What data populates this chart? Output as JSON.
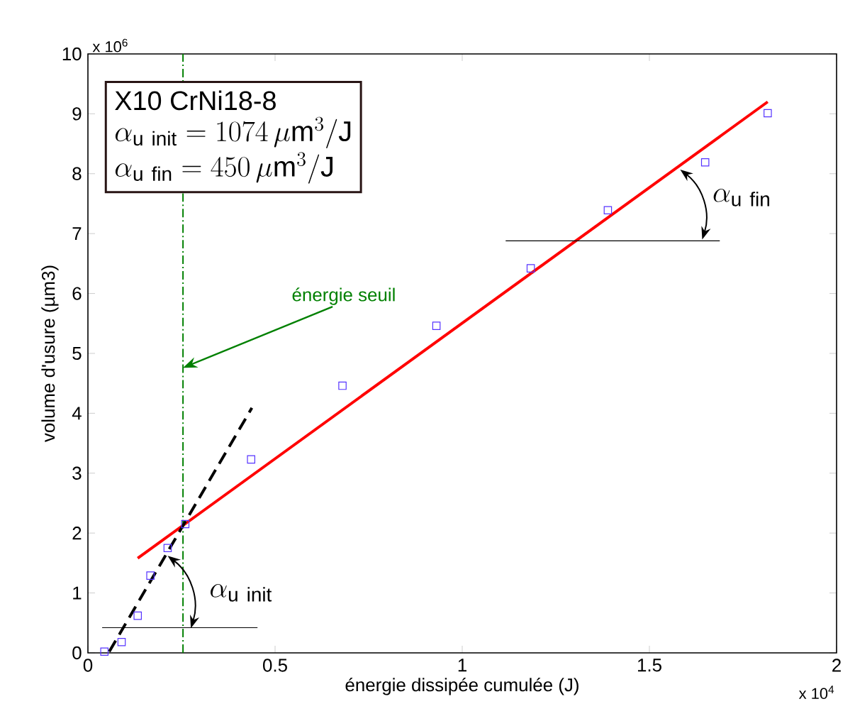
{
  "chart_data": {
    "type": "scatter",
    "xlabel": "énergie dissipée cumulée (J)",
    "ylabel": "volume d'usure (µm3)",
    "xlim": [
      0,
      2
    ],
    "ylim": [
      0,
      10
    ],
    "xticks": [
      0,
      0.5,
      1,
      1.5,
      2
    ],
    "yticks": [
      0,
      1,
      2,
      3,
      4,
      5,
      6,
      7,
      8,
      9,
      10
    ],
    "marker": "square",
    "series": [
      {
        "color": "#5533ff",
        "x": [
          0.044,
          0.09,
          0.133,
          0.167,
          0.213,
          0.26,
          0.436,
          0.68,
          0.931,
          1.183,
          1.389,
          1.649,
          1.816
        ],
        "values": [
          0.02,
          0.18,
          0.62,
          1.29,
          1.75,
          2.15,
          3.23,
          4.46,
          5.46,
          6.42,
          7.39,
          8.19,
          9.01
        ]
      },
      {
        "type": "line",
        "color": "#ff0000",
        "line_style": "solid",
        "marker": "none",
        "x": [
          0.133,
          1.816
        ],
        "values": [
          1.58,
          9.2
        ]
      },
      {
        "type": "line",
        "color": "#000000",
        "line_style": "dashed",
        "marker": "none",
        "x": [
          0.057,
          0.438
        ],
        "values": [
          0.02,
          4.09
        ]
      },
      {
        "type": "line",
        "color": "#000000",
        "line_style": "solid",
        "marker": "none",
        "x": [
          0.038,
          0.453
        ],
        "values": [
          0.42,
          0.42
        ]
      },
      {
        "type": "line",
        "color": "#000000",
        "line_style": "solid",
        "marker": "none",
        "x": [
          1.116,
          1.688
        ],
        "values": [
          6.88,
          6.88
        ]
      }
    ],
    "ref_lines": [
      {
        "axis": "x",
        "value": 0.254,
        "label": "énergie seuil",
        "color": "#008000",
        "line_style": "dashdot"
      }
    ],
    "annotations": [
      "x 10$^{6}$",
      "x 10$^{4}$",
      "X10 CrNi18-8",
      "\\alpha_{\\mathrm{u\\ init}} = 1074\\,\\mu\\mathrm{m}^{3}/\\mathrm{J}",
      "\\alpha_{\\mathrm{u\\ fin}} = 450\\,\\mu\\mathrm{m}^{3}/\\mathrm{J}",
      "\\alpha_{\\mathrm{u\\ init}}",
      "\\alpha_{\\mathrm{u\\ fin}}"
    ]
  }
}
